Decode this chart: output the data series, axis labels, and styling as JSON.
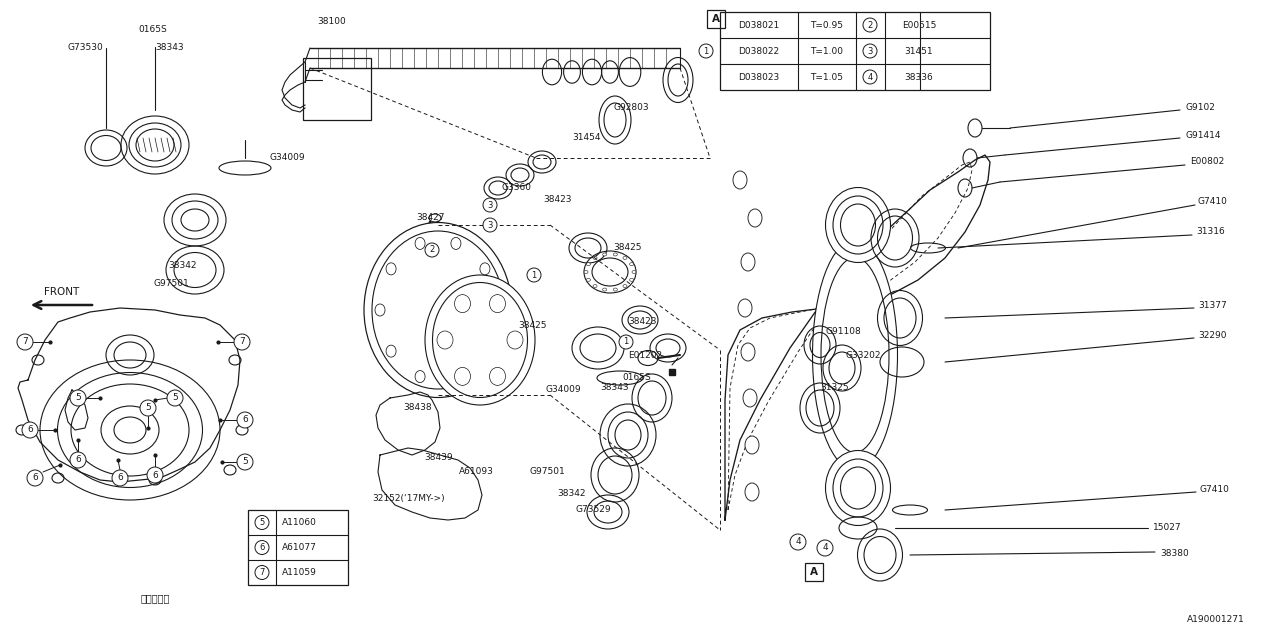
{
  "bg_color": "#ffffff",
  "line_color": "#1a1a1a",
  "fig_width": 12.8,
  "fig_height": 6.4,
  "table_data": [
    [
      "D038021",
      "T=0.95",
      "2",
      "E00515"
    ],
    [
      "D038022",
      "T=1.00",
      "3",
      "31451"
    ],
    [
      "D038023",
      "T=1.05",
      "4",
      "38336"
    ]
  ],
  "legend_data": [
    [
      "5",
      "A11060"
    ],
    [
      "6",
      "A61077"
    ],
    [
      "7",
      "A11059"
    ]
  ]
}
